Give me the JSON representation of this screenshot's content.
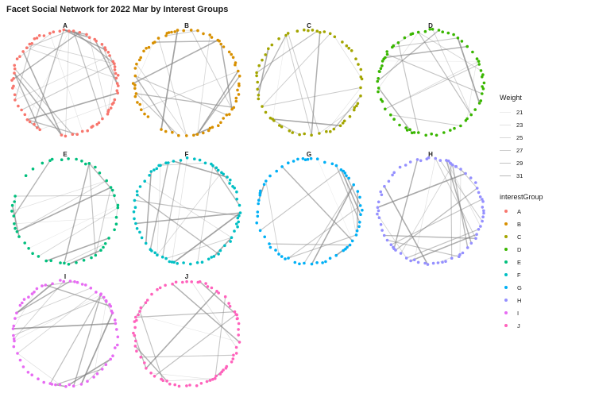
{
  "title": "Facet Social Network for 2022 Mar by Interest Groups",
  "legend": {
    "weight_title": "Weight",
    "weight_items": [
      {
        "label": "21",
        "alpha": 0.15
      },
      {
        "label": "23",
        "alpha": 0.23
      },
      {
        "label": "25",
        "alpha": 0.31
      },
      {
        "label": "27",
        "alpha": 0.39
      },
      {
        "label": "29",
        "alpha": 0.47
      },
      {
        "label": "31",
        "alpha": 0.55
      }
    ],
    "group_title": "interestGroup"
  },
  "chart_data": {
    "type": "network",
    "layout": "circle",
    "facet_by": "interestGroup",
    "edge_color": "#808080",
    "groups": [
      {
        "name": "A",
        "color": "#F8766D",
        "n_nodes": 72
      },
      {
        "name": "B",
        "color": "#D89000",
        "n_nodes": 68
      },
      {
        "name": "C",
        "color": "#A3A500",
        "n_nodes": 58
      },
      {
        "name": "D",
        "color": "#39B600",
        "n_nodes": 66
      },
      {
        "name": "E",
        "color": "#00BF7D",
        "n_nodes": 48
      },
      {
        "name": "F",
        "color": "#00BFC4",
        "n_nodes": 70
      },
      {
        "name": "G",
        "color": "#00B0F6",
        "n_nodes": 62
      },
      {
        "name": "H",
        "color": "#9590FF",
        "n_nodes": 70
      },
      {
        "name": "I",
        "color": "#E76BF3",
        "n_nodes": 64
      },
      {
        "name": "J",
        "color": "#FF62BC",
        "n_nodes": 72
      }
    ]
  }
}
